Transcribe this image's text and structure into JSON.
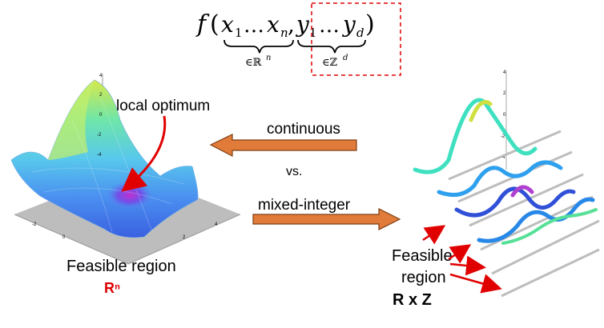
{
  "formula": {
    "f": "f",
    "open_paren": "(",
    "x_first": "x",
    "x_first_sub": "1",
    "x_dots": "…",
    "x_last": "x",
    "x_last_sub": "n",
    "comma": ",",
    "y_first": "y",
    "y_first_sub": "1",
    "y_dots": "…",
    "y_last": "y",
    "y_last_sub": "d",
    "close_paren": ")",
    "x_domain": "∈ℝ",
    "x_domain_sup": "n",
    "y_domain": "∈ℤ",
    "y_domain_sup": "d"
  },
  "left_panel": {
    "annotation": "local optimum",
    "region_label": "Feasible region",
    "region_symbol": "Rⁿ",
    "tick_labels": [
      "4",
      "2",
      "0",
      "-2",
      "-4",
      "-2",
      "0",
      "2",
      "4"
    ]
  },
  "center": {
    "top_arrow_label": "continuous",
    "vs_label": "vs.",
    "bottom_arrow_label": "mixed-integer"
  },
  "right_panel": {
    "region_label_line1": "Feasible",
    "region_label_line2": "region",
    "region_symbol": "R x Z",
    "tick_labels": [
      "4",
      "2",
      "0",
      "-2",
      "-4"
    ]
  },
  "colors": {
    "arrow_fill": "#E07B39",
    "arrow_stroke": "#7F3F14",
    "pointer_red": "#E00000",
    "dashed_box": "#E00000",
    "plane_gray": "#BDBDBD"
  }
}
